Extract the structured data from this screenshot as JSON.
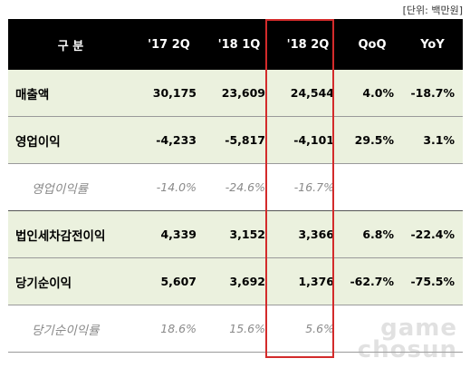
{
  "unit_label": "[단위: 백만원]",
  "table": {
    "headers": [
      "구 분",
      "'17 2Q",
      "'18 1Q",
      "'18 2Q",
      "QoQ",
      "YoY"
    ],
    "rows": [
      {
        "label": "매출액",
        "values": [
          "30,175",
          "23,609",
          "24,544",
          "4.0%",
          "-18.7%"
        ]
      },
      {
        "label": "영업이익",
        "values": [
          "-4,233",
          "-5,817",
          "-4,101",
          "29.5%",
          "3.1%"
        ]
      },
      {
        "label": "영업이익률",
        "values": [
          "-14.0%",
          "-24.6%",
          "-16.7%",
          "",
          ""
        ]
      },
      {
        "label": "법인세차감전이익",
        "values": [
          "4,339",
          "3,152",
          "3,366",
          "6.8%",
          "-22.4%"
        ]
      },
      {
        "label": "당기순이익",
        "values": [
          "5,607",
          "3,692",
          "1,376",
          "-62.7%",
          "-75.5%"
        ]
      },
      {
        "label": "당기순이익률",
        "values": [
          "18.6%",
          "15.6%",
          "5.6%",
          "",
          ""
        ]
      }
    ]
  },
  "highlight_column": "'18 2Q",
  "highlight_color": "#d32b2b",
  "header_bg": "#000000",
  "row_green_bg": "#ebf1de",
  "watermark": {
    "line1": "game",
    "line2": "chosun"
  }
}
